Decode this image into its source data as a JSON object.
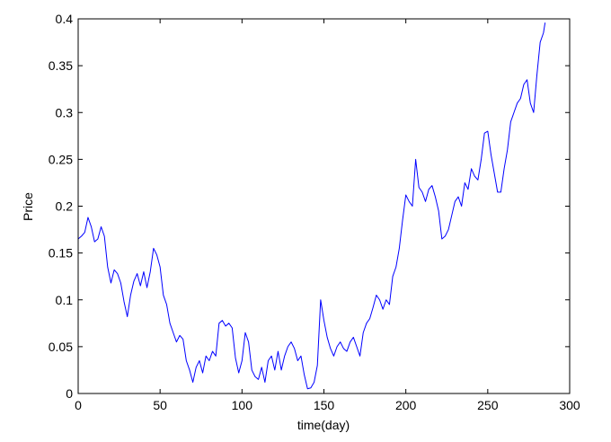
{
  "chart_data": {
    "type": "line",
    "title": "",
    "xlabel": "time(day)",
    "ylabel": "Price",
    "xlim": [
      0,
      300
    ],
    "ylim": [
      0,
      0.4
    ],
    "xticks": [
      "0",
      "50",
      "100",
      "150",
      "200",
      "250",
      "300"
    ],
    "yticks": [
      "0",
      "0.05",
      "0.1",
      "0.15",
      "0.2",
      "0.25",
      "0.3",
      "0.35",
      "0.4"
    ],
    "xtick_values": [
      0,
      50,
      100,
      150,
      200,
      250,
      300
    ],
    "ytick_values": [
      0,
      0.05,
      0.1,
      0.15,
      0.2,
      0.25,
      0.3,
      0.35,
      0.4
    ],
    "grid": false,
    "legend": "none",
    "series": [
      {
        "color": "#0000ff",
        "x": [
          0,
          2,
          4,
          6,
          8,
          10,
          12,
          14,
          16,
          18,
          20,
          22,
          24,
          26,
          28,
          30,
          32,
          34,
          36,
          38,
          40,
          42,
          44,
          46,
          48,
          50,
          52,
          54,
          56,
          58,
          60,
          62,
          64,
          66,
          68,
          70,
          72,
          74,
          76,
          78,
          80,
          82,
          84,
          86,
          88,
          90,
          92,
          94,
          96,
          98,
          100,
          102,
          104,
          106,
          108,
          110,
          112,
          114,
          116,
          118,
          120,
          122,
          124,
          126,
          128,
          130,
          132,
          134,
          136,
          138,
          140,
          142,
          144,
          146,
          148,
          150,
          152,
          154,
          156,
          158,
          160,
          162,
          164,
          166,
          168,
          170,
          172,
          174,
          176,
          178,
          180,
          182,
          184,
          186,
          188,
          190,
          192,
          194,
          196,
          198,
          200,
          202,
          204,
          206,
          208,
          210,
          212,
          214,
          216,
          218,
          220,
          222,
          224,
          226,
          228,
          230,
          232,
          234,
          236,
          238,
          240,
          242,
          244,
          246,
          248,
          250,
          252,
          254,
          256,
          258,
          260,
          262,
          264,
          266,
          268,
          270,
          272,
          274,
          276,
          278,
          280,
          282,
          284,
          285
        ],
        "values": [
          0.165,
          0.168,
          0.172,
          0.188,
          0.178,
          0.162,
          0.165,
          0.178,
          0.168,
          0.135,
          0.118,
          0.132,
          0.128,
          0.118,
          0.098,
          0.082,
          0.105,
          0.12,
          0.128,
          0.115,
          0.13,
          0.113,
          0.13,
          0.155,
          0.148,
          0.135,
          0.105,
          0.095,
          0.075,
          0.065,
          0.055,
          0.062,
          0.058,
          0.035,
          0.025,
          0.012,
          0.028,
          0.035,
          0.022,
          0.04,
          0.035,
          0.045,
          0.04,
          0.075,
          0.078,
          0.072,
          0.075,
          0.07,
          0.038,
          0.022,
          0.035,
          0.065,
          0.055,
          0.025,
          0.018,
          0.015,
          0.028,
          0.012,
          0.035,
          0.04,
          0.025,
          0.045,
          0.025,
          0.04,
          0.05,
          0.055,
          0.048,
          0.035,
          0.04,
          0.02,
          0.005,
          0.006,
          0.012,
          0.03,
          0.1,
          0.078,
          0.06,
          0.048,
          0.04,
          0.05,
          0.055,
          0.048,
          0.045,
          0.055,
          0.06,
          0.05,
          0.04,
          0.065,
          0.075,
          0.08,
          0.092,
          0.105,
          0.1,
          0.09,
          0.1,
          0.095,
          0.125,
          0.135,
          0.155,
          0.185,
          0.212,
          0.205,
          0.2,
          0.25,
          0.22,
          0.215,
          0.205,
          0.218,
          0.222,
          0.21,
          0.195,
          0.165,
          0.168,
          0.175,
          0.19,
          0.205,
          0.21,
          0.2,
          0.225,
          0.218,
          0.24,
          0.232,
          0.228,
          0.25,
          0.278,
          0.28,
          0.255,
          0.235,
          0.215,
          0.215,
          0.24,
          0.26,
          0.29,
          0.3,
          0.31,
          0.315,
          0.33,
          0.335,
          0.31,
          0.3,
          0.34,
          0.375,
          0.385,
          0.396
        ]
      }
    ]
  }
}
